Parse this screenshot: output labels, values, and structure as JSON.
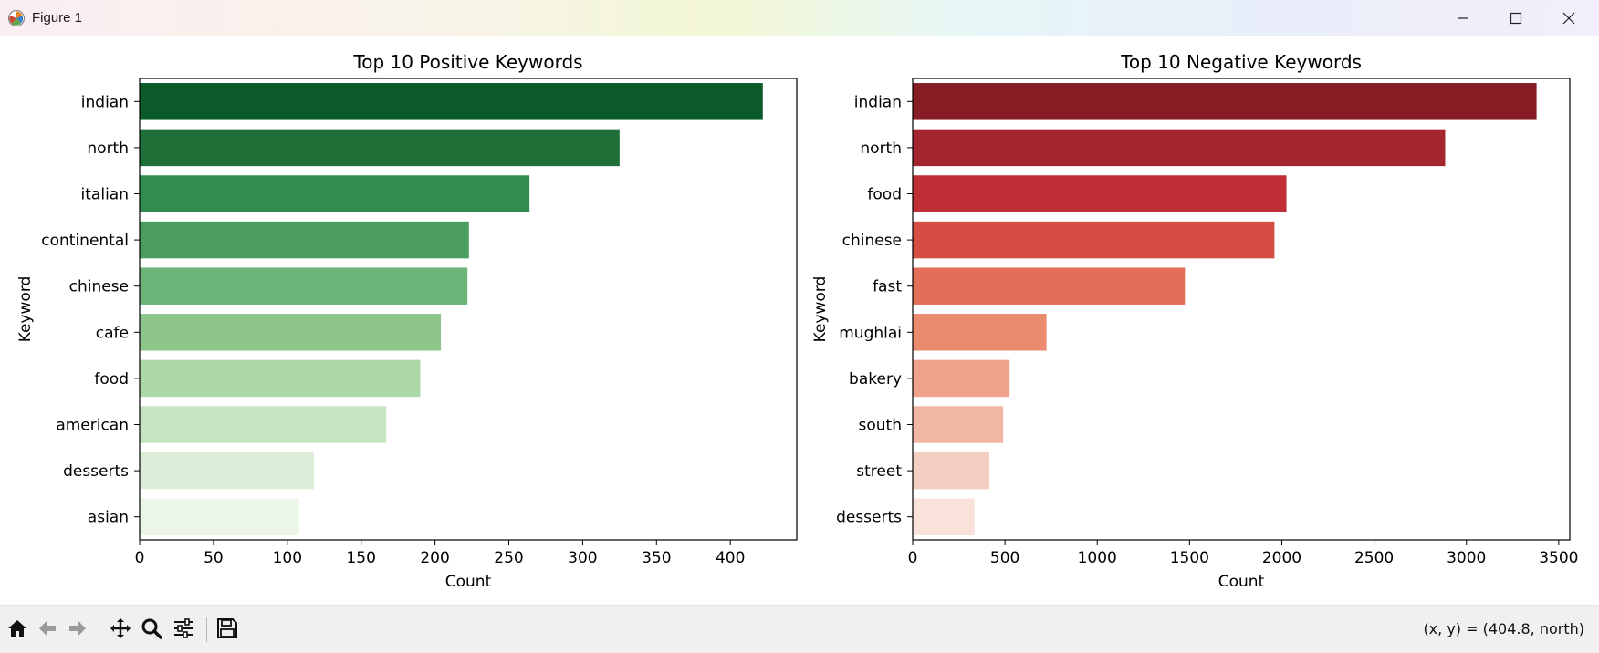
{
  "window": {
    "title": "Figure 1"
  },
  "status": {
    "coords_text": "(x, y) = (404.8, north)"
  },
  "toolbar": {
    "tools": [
      "home-icon",
      "back-arrow-icon",
      "forward-arrow-icon",
      "pan-move-icon",
      "zoom-magnifier-icon",
      "configure-subplots-icon",
      "save-floppy-icon"
    ]
  },
  "chart_data": [
    {
      "type": "bar",
      "orientation": "horizontal",
      "title": "Top 10 Positive Keywords",
      "xlabel": "Count",
      "ylabel": "Keyword",
      "categories": [
        "indian",
        "north",
        "italian",
        "continental",
        "chinese",
        "cafe",
        "food",
        "american",
        "desserts",
        "asian"
      ],
      "values": [
        422,
        325,
        264,
        223,
        222,
        204,
        190,
        167,
        118,
        108
      ],
      "xlim": [
        0,
        445
      ],
      "xticks": [
        0,
        50,
        100,
        150,
        200,
        250,
        300,
        350,
        400
      ],
      "colors": [
        "#0b5a2b",
        "#1f7038",
        "#318d4f",
        "#4a9d5f",
        "#6ab477",
        "#8ec58b",
        "#acd7a6",
        "#c6e4c1",
        "#dceed8",
        "#ebf6e9"
      ],
      "grid": false,
      "legend": "none"
    },
    {
      "type": "bar",
      "orientation": "horizontal",
      "title": "Top 10 Negative Keywords",
      "xlabel": "Count",
      "ylabel": "Keyword",
      "categories": [
        "indian",
        "north",
        "food",
        "chinese",
        "fast",
        "mughlai",
        "bakery",
        "south",
        "street",
        "desserts"
      ],
      "values": [
        3380,
        2885,
        2025,
        1960,
        1475,
        725,
        525,
        490,
        415,
        335
      ],
      "xlim": [
        0,
        3560
      ],
      "xticks": [
        0,
        500,
        1000,
        1500,
        2000,
        2500,
        3000,
        3500
      ],
      "colors": [
        "#861c24",
        "#a3262e",
        "#bf2f35",
        "#d54d43",
        "#e36e59",
        "#ea8b6e",
        "#efa18a",
        "#f1b7a3",
        "#f4cfc1",
        "#f8e2da"
      ],
      "grid": false,
      "legend": "none"
    }
  ]
}
